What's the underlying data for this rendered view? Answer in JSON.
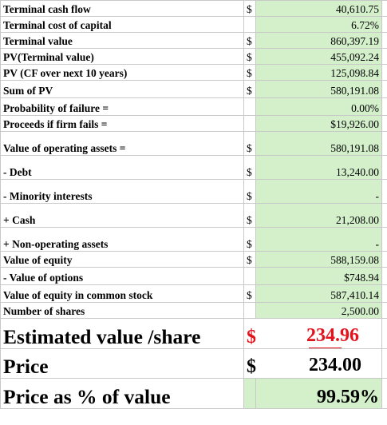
{
  "sheet": {
    "rows": [
      {
        "label": "Terminal cash flow",
        "currency": "$",
        "value": "40,610.75"
      },
      {
        "label": "Terminal cost of capital",
        "currency": "",
        "value": "6.72%"
      },
      {
        "label": "Terminal value",
        "currency": "$",
        "value": "860,397.19"
      },
      {
        "label": "PV(Terminal value)",
        "currency": "$",
        "value": "455,092.24"
      },
      {
        "label": "PV (CF over next 10 years)",
        "currency": "$",
        "value": "125,098.84"
      },
      {
        "label": "Sum of PV",
        "currency": "$",
        "value": "580,191.08"
      },
      {
        "label": "Probability of failure =",
        "currency": "",
        "value": "0.00%"
      },
      {
        "label": "Proceeds if firm fails =",
        "currency": "",
        "value": "$19,926.00"
      },
      {
        "label": "Value of operating assets =",
        "currency": "$",
        "value": "580,191.08"
      },
      {
        "label": " - Debt",
        "currency": "$",
        "value": "13,240.00"
      },
      {
        "label": " - Minority interests",
        "currency": "$",
        "value": "-"
      },
      {
        "label": " + Cash",
        "currency": "$",
        "value": "21,208.00"
      },
      {
        "label": " + Non-operating assets",
        "currency": "$",
        "value": "-"
      },
      {
        "label": "Value of equity",
        "currency": "$",
        "value": "588,159.08"
      },
      {
        "label": " - Value of options",
        "currency": "",
        "value": "$748.94"
      },
      {
        "label": "Value of equity in common stock",
        "currency": "$",
        "value": "587,410.14"
      },
      {
        "label": "Number of shares",
        "currency": "",
        "value": "2,500.00"
      }
    ],
    "summary": {
      "estimated_label": "Estimated value /share",
      "estimated_currency": "$",
      "estimated_value": "234.96",
      "price_label": "Price",
      "price_currency": "$",
      "price_value": "234.00",
      "ratio_label": "Price as % of value",
      "ratio_value": "99.59%"
    },
    "colors": {
      "value_fill": "#d3f0cb",
      "gridline": "#c8c8c8",
      "highlight": "#e3121b"
    }
  }
}
